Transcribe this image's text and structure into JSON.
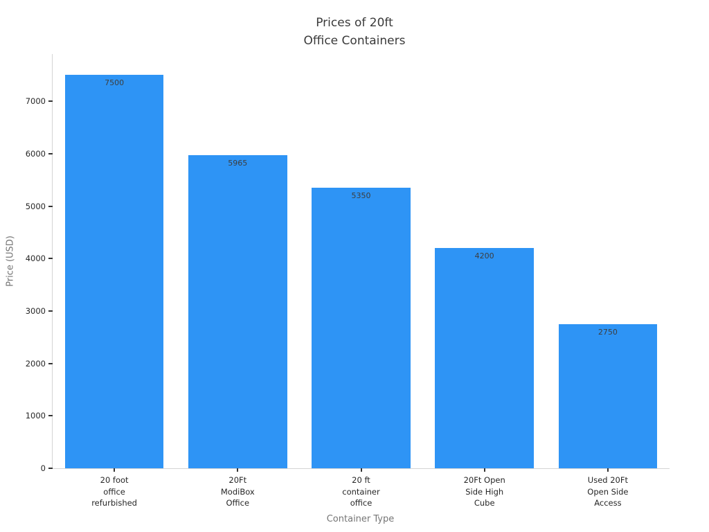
{
  "chart_data": {
    "type": "bar",
    "title": "Prices of 20ft\nOffice Containers",
    "xlabel": "Container Type",
    "ylabel": "Price (USD)",
    "categories": [
      "20 foot\noffice\nrefurbished",
      "20Ft\nModiBox\nOffice",
      "20 ft\ncontainer\noffice",
      "20Ft Open\nSide High\nCube",
      "Used 20Ft\nOpen Side\nAccess"
    ],
    "values": [
      7500,
      5965,
      5350,
      4200,
      2750
    ],
    "value_labels": [
      "7500",
      "5965",
      "5350",
      "4200",
      "2750"
    ],
    "ylim": [
      0,
      7900
    ],
    "yticks": [
      0,
      1000,
      2000,
      3000,
      4000,
      5000,
      6000,
      7000
    ],
    "grid": false,
    "legend": "none",
    "colors": {
      "bar": "#2e94f5",
      "title_text": "#3a3a3a",
      "tick_text": "#262626",
      "axis_label_text": "#757575",
      "value_label_text": "#3d3d3d",
      "spine": "#d4d4d4",
      "tick_mark": "#333333",
      "background": "#ffffff"
    }
  }
}
